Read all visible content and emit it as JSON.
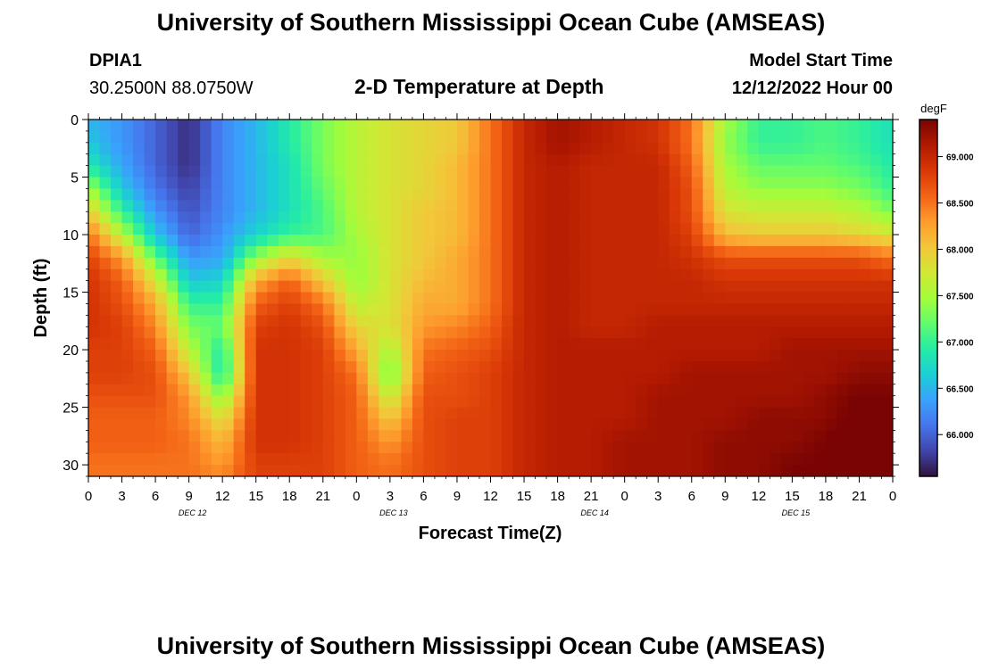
{
  "header": {
    "title": "University of Southern Mississippi Ocean Cube (AMSEAS)",
    "station_id": "DPIA1",
    "coordinates": "30.2500N  88.0750W",
    "plot_title": "2-D Temperature at Depth",
    "model_start_label": "Model Start Time",
    "model_start_value": "12/12/2022 Hour 00"
  },
  "footer": {
    "title": "University of Southern Mississippi Ocean Cube (AMSEAS)"
  },
  "colors": {
    "palette": [
      "#30123b",
      "#4145ab",
      "#4675ed",
      "#39a2fc",
      "#1bcfd4",
      "#24eca6",
      "#61fc6c",
      "#a4fc3b",
      "#d1e834",
      "#f3c63a",
      "#fe9b2d",
      "#f36315",
      "#d93806",
      "#b11901",
      "#7a0403"
    ]
  },
  "chart_data": {
    "type": "heatmap",
    "title": "2-D Temperature at Depth",
    "xlabel": "Forecast Time(Z)",
    "ylabel": "Depth (ft)",
    "xlim": [
      0,
      72
    ],
    "ylim": [
      0,
      31
    ],
    "x_hours": [
      0,
      3,
      6,
      9,
      12,
      15,
      18,
      21,
      24,
      27,
      30,
      33,
      36,
      39,
      42,
      45,
      48,
      51,
      54,
      57,
      60,
      63,
      66,
      69,
      72
    ],
    "x_tick_labels": [
      "0",
      "3",
      "6",
      "9",
      "12",
      "15",
      "18",
      "21",
      "0",
      "3",
      "6",
      "9",
      "12",
      "15",
      "18",
      "21",
      "0",
      "3",
      "6",
      "9",
      "12",
      "15",
      "18",
      "21",
      "0"
    ],
    "y_ticks": [
      0,
      5,
      10,
      15,
      20,
      25,
      30
    ],
    "y_tick_labels": [
      "0",
      "5",
      "10",
      "15",
      "20",
      "25",
      "30"
    ],
    "day_labels": [
      {
        "hour": 9,
        "label": "DEC 12"
      },
      {
        "hour": 27,
        "label": "DEC 13"
      },
      {
        "hour": 45,
        "label": "DEC 14"
      },
      {
        "hour": 63,
        "label": "DEC 15"
      }
    ],
    "depths_ft": [
      0,
      2,
      4,
      6,
      8,
      10,
      12,
      14,
      16,
      18,
      20,
      22,
      24,
      26,
      28,
      30,
      31
    ],
    "temperature_degF": [
      [
        66.5,
        66.3,
        66.0,
        65.7,
        66.2,
        66.5,
        66.9,
        67.3,
        67.6,
        67.8,
        67.9,
        68.0,
        68.5,
        69.0,
        69.2,
        69.1,
        69.0,
        68.9,
        68.5,
        67.5,
        67.0,
        67.0,
        67.1,
        67.0,
        66.8
      ],
      [
        66.6,
        66.3,
        66.0,
        65.7,
        66.2,
        66.5,
        66.9,
        67.3,
        67.6,
        67.8,
        67.9,
        68.0,
        68.5,
        69.0,
        69.2,
        69.1,
        69.0,
        68.9,
        68.5,
        67.4,
        67.0,
        67.0,
        67.1,
        67.0,
        66.8
      ],
      [
        66.9,
        66.4,
        66.0,
        65.7,
        66.2,
        66.5,
        66.8,
        67.3,
        67.6,
        67.8,
        67.9,
        68.1,
        68.5,
        69.0,
        69.1,
        69.0,
        69.0,
        69.0,
        68.6,
        67.5,
        67.2,
        67.2,
        67.2,
        67.1,
        66.9
      ],
      [
        67.5,
        66.6,
        66.1,
        65.8,
        66.2,
        66.5,
        66.8,
        67.2,
        67.6,
        67.8,
        67.9,
        68.1,
        68.5,
        69.0,
        69.1,
        69.0,
        69.0,
        69.0,
        68.7,
        67.6,
        67.4,
        67.4,
        67.4,
        67.3,
        67.0
      ],
      [
        68.0,
        67.0,
        66.3,
        65.9,
        66.2,
        66.5,
        66.8,
        67.1,
        67.6,
        67.8,
        68.0,
        68.1,
        68.5,
        69.0,
        69.1,
        69.0,
        69.0,
        69.0,
        68.7,
        67.8,
        67.7,
        67.7,
        67.7,
        67.6,
        67.3
      ],
      [
        68.5,
        67.6,
        66.6,
        66.0,
        66.3,
        66.7,
        67.0,
        67.1,
        67.5,
        67.8,
        68.0,
        68.1,
        68.5,
        69.0,
        69.1,
        69.0,
        69.0,
        69.0,
        68.8,
        68.1,
        68.0,
        68.0,
        68.0,
        67.9,
        67.8
      ],
      [
        68.8,
        68.3,
        67.2,
        66.3,
        66.4,
        67.4,
        67.9,
        67.5,
        67.4,
        67.8,
        68.0,
        68.2,
        68.5,
        69.0,
        69.1,
        69.0,
        69.0,
        69.0,
        68.9,
        68.7,
        68.7,
        68.7,
        68.7,
        68.7,
        68.5
      ],
      [
        68.9,
        68.6,
        67.8,
        66.6,
        66.7,
        68.2,
        68.6,
        68.0,
        67.4,
        67.8,
        68.1,
        68.2,
        68.5,
        69.0,
        69.1,
        69.0,
        69.0,
        69.0,
        69.0,
        68.9,
        68.9,
        68.9,
        68.9,
        68.9,
        68.9
      ],
      [
        68.9,
        68.7,
        68.2,
        67.0,
        67.0,
        68.6,
        68.8,
        68.5,
        67.6,
        67.8,
        68.2,
        68.2,
        68.5,
        69.0,
        69.1,
        69.0,
        69.0,
        69.0,
        69.0,
        69.0,
        69.0,
        69.0,
        69.0,
        69.0,
        69.0
      ],
      [
        68.9,
        68.8,
        68.4,
        67.3,
        67.2,
        68.8,
        68.9,
        68.7,
        67.9,
        67.8,
        68.3,
        68.4,
        68.6,
        69.0,
        69.1,
        69.0,
        69.0,
        69.1,
        69.1,
        69.1,
        69.1,
        69.1,
        69.1,
        69.1,
        69.1
      ],
      [
        68.8,
        68.8,
        68.6,
        67.6,
        66.9,
        68.9,
        68.9,
        68.8,
        68.2,
        67.5,
        68.5,
        68.6,
        68.7,
        69.0,
        69.1,
        69.1,
        69.1,
        69.1,
        69.1,
        69.1,
        69.1,
        69.2,
        69.2,
        69.2,
        69.2
      ],
      [
        68.8,
        68.8,
        68.7,
        68.0,
        66.8,
        68.9,
        68.9,
        68.8,
        68.5,
        67.2,
        68.6,
        68.7,
        68.8,
        69.0,
        69.1,
        69.1,
        69.1,
        69.1,
        69.2,
        69.2,
        69.2,
        69.2,
        69.2,
        69.3,
        69.3
      ],
      [
        68.7,
        68.7,
        68.7,
        68.3,
        67.3,
        68.9,
        68.9,
        68.8,
        68.6,
        67.6,
        68.7,
        68.7,
        68.8,
        69.0,
        69.1,
        69.1,
        69.1,
        69.2,
        69.2,
        69.2,
        69.2,
        69.2,
        69.3,
        69.4,
        69.4
      ],
      [
        68.6,
        68.6,
        68.6,
        68.4,
        67.8,
        68.9,
        68.9,
        68.8,
        68.6,
        68.0,
        68.7,
        68.8,
        68.8,
        69.0,
        69.1,
        69.1,
        69.1,
        69.2,
        69.2,
        69.2,
        69.3,
        69.3,
        69.3,
        69.5,
        69.6
      ],
      [
        68.6,
        68.6,
        68.6,
        68.5,
        68.1,
        68.9,
        68.9,
        68.8,
        68.6,
        68.3,
        68.7,
        68.8,
        68.8,
        69.0,
        69.1,
        69.1,
        69.2,
        69.2,
        69.2,
        69.3,
        69.3,
        69.3,
        69.4,
        69.6,
        69.7
      ],
      [
        68.5,
        68.5,
        68.5,
        68.5,
        68.3,
        68.8,
        68.8,
        68.8,
        68.6,
        68.5,
        68.7,
        68.8,
        68.8,
        69.0,
        69.1,
        69.1,
        69.2,
        69.2,
        69.2,
        69.3,
        69.3,
        69.4,
        69.4,
        69.7,
        69.8
      ],
      [
        68.5,
        68.5,
        68.5,
        68.5,
        68.4,
        68.8,
        68.8,
        68.8,
        68.6,
        68.5,
        68.7,
        68.8,
        68.8,
        69.0,
        69.1,
        69.1,
        69.2,
        69.2,
        69.2,
        69.3,
        69.3,
        69.4,
        69.4,
        69.7,
        69.8
      ]
    ],
    "colorbar": {
      "unit": "degF",
      "min": 65.55,
      "max": 69.4,
      "ticks": [
        66.0,
        66.5,
        67.0,
        67.5,
        68.0,
        68.5,
        69.0
      ],
      "tick_labels": [
        "66.000",
        "66.500",
        "67.000",
        "67.500",
        "68.000",
        "68.500",
        "69.000"
      ]
    }
  }
}
